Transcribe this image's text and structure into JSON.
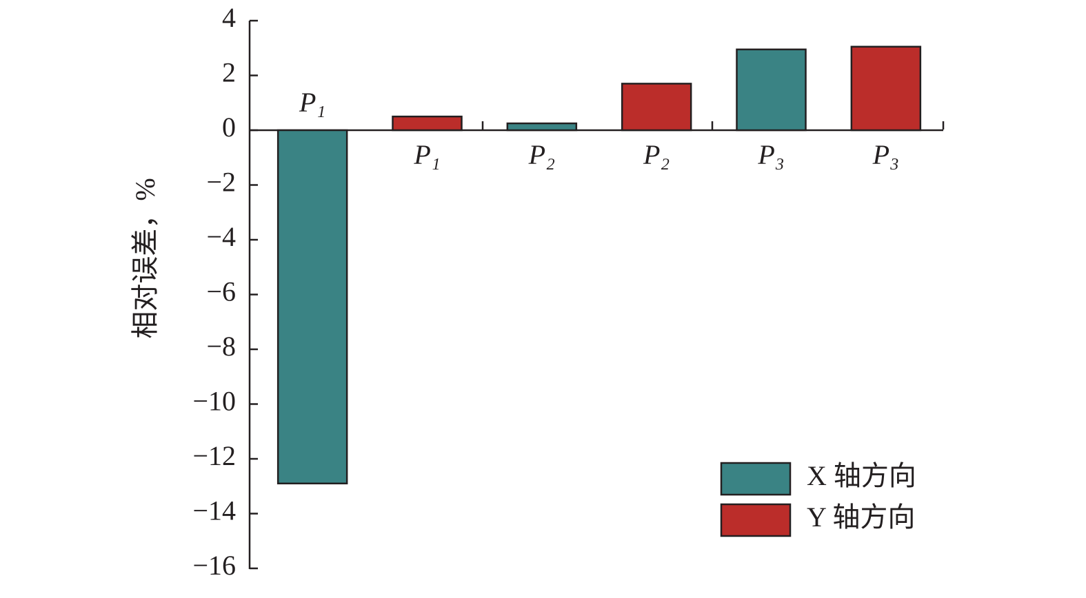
{
  "chart_data": {
    "type": "bar",
    "y_label": "相对误差，%",
    "categories": [
      "P₁",
      "P₁",
      "P₂",
      "P₂",
      "P₃",
      "P₃"
    ],
    "series": [
      {
        "name": "X 轴方向",
        "color": "#3a8384",
        "values": [
          -12.9,
          null,
          0.25,
          null,
          2.95,
          null
        ]
      },
      {
        "name": "Y 轴方向",
        "color": "#bb2d2a",
        "values": [
          null,
          0.5,
          null,
          1.7,
          null,
          3.05
        ]
      }
    ],
    "ylim": [
      -16,
      4
    ],
    "yticks": [
      {
        "value": -16,
        "label": "−16"
      },
      {
        "value": -14,
        "label": "−14"
      },
      {
        "value": -12,
        "label": "−12"
      },
      {
        "value": -10,
        "label": "−10"
      },
      {
        "value": -8,
        "label": "−8"
      },
      {
        "value": -6,
        "label": "−6"
      },
      {
        "value": -4,
        "label": "−4"
      },
      {
        "value": -2,
        "label": "−2"
      },
      0,
      2,
      4
    ],
    "grid": false,
    "legend": "lower right"
  }
}
